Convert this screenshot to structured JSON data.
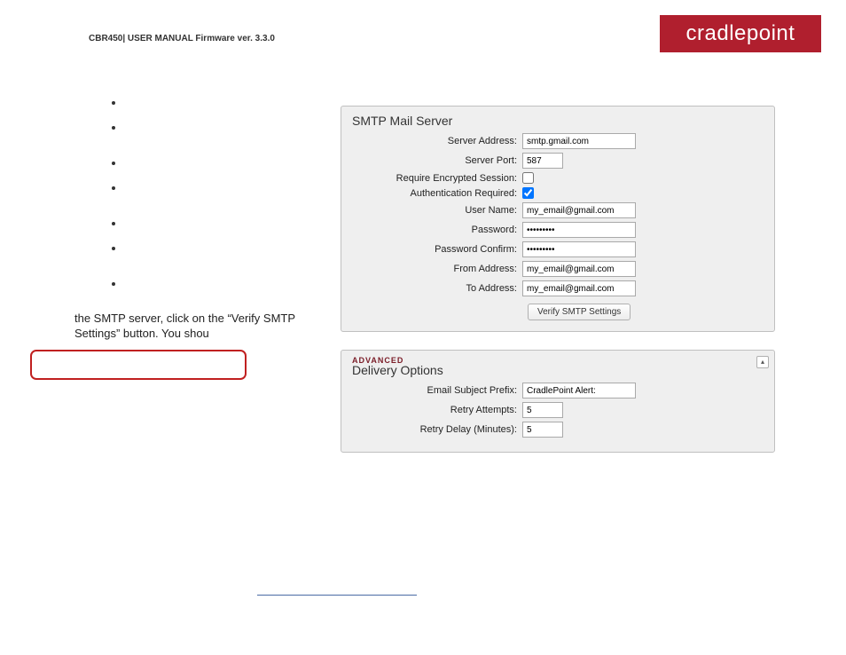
{
  "header": {
    "doc_line": "CBR450| USER MANUAL Firmware ver. 3.3.0",
    "logo_text": "cradlepoint"
  },
  "body_text": "the SMTP server, click on the “Verify SMTP Settings” button. You shou",
  "smtp": {
    "title": "SMTP Mail Server",
    "fields": {
      "server_address": {
        "label": "Server Address:",
        "value": "smtp.gmail.com"
      },
      "server_port": {
        "label": "Server Port:",
        "value": "587"
      },
      "require_enc": {
        "label": "Require Encrypted Session:",
        "checked": false
      },
      "auth_required": {
        "label": "Authentication Required:",
        "checked": true
      },
      "user_name": {
        "label": "User Name:",
        "value": "my_email@gmail.com"
      },
      "password": {
        "label": "Password:",
        "value": "•••••••••"
      },
      "password_conf": {
        "label": "Password Confirm:",
        "value": "•••••••••"
      },
      "from_addr": {
        "label": "From Address:",
        "value": "my_email@gmail.com"
      },
      "to_addr": {
        "label": "To Address:",
        "value": "my_email@gmail.com"
      }
    },
    "verify_button": "Verify SMTP Settings"
  },
  "delivery": {
    "advanced_label": "ADVANCED",
    "title": "Delivery Options",
    "collapse_glyph": "▴",
    "fields": {
      "subject_prefix": {
        "label": "Email Subject Prefix:",
        "value": "CradlePoint Alert:"
      },
      "retry_attempts": {
        "label": "Retry Attempts:",
        "value": "5"
      },
      "retry_delay": {
        "label": "Retry Delay (Minutes):",
        "value": "5"
      }
    }
  },
  "colors": {
    "logo_bg": "#b01f2e",
    "panel_bg": "#efefef",
    "panel_border": "#c0c0c0",
    "redbox_border": "#c02020",
    "link_line": "#4a6aa5"
  }
}
